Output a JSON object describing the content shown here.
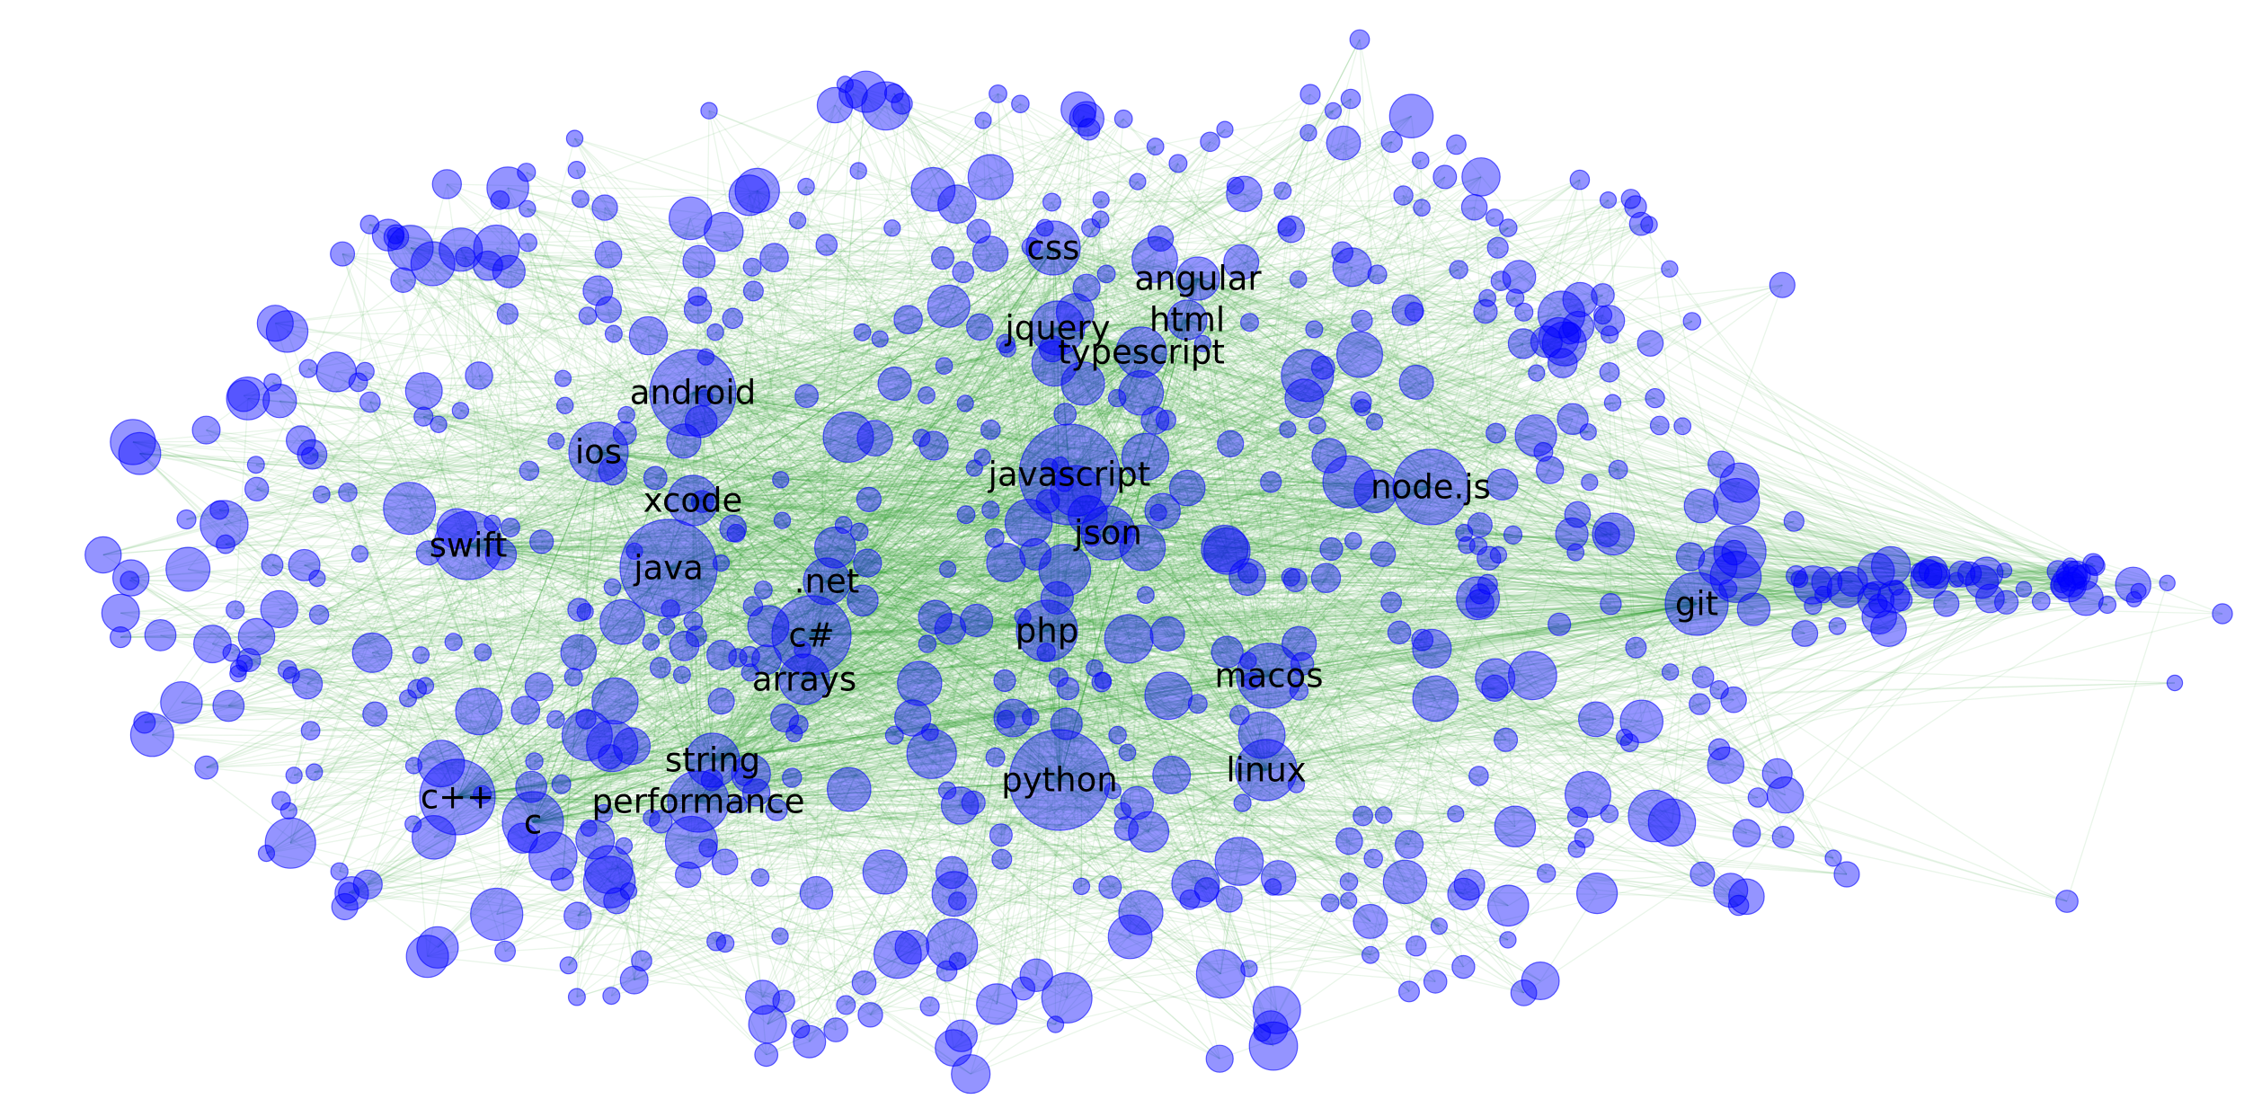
{
  "diagram": {
    "type": "network-graph",
    "node_color": "#0000ff",
    "edge_color": "#2ca02c",
    "background": "#ffffff",
    "labeled_nodes": [
      {
        "id": "css",
        "label": "css"
      },
      {
        "id": "angular",
        "label": "angular"
      },
      {
        "id": "html",
        "label": "html"
      },
      {
        "id": "jquery",
        "label": "jquery"
      },
      {
        "id": "typescript",
        "label": "typescript"
      },
      {
        "id": "android",
        "label": "android"
      },
      {
        "id": "ios",
        "label": "ios"
      },
      {
        "id": "javascript",
        "label": "javascript"
      },
      {
        "id": "nodejs",
        "label": "node.js"
      },
      {
        "id": "xcode",
        "label": "xcode"
      },
      {
        "id": "swift",
        "label": "swift"
      },
      {
        "id": "json",
        "label": "json"
      },
      {
        "id": "java",
        "label": "java"
      },
      {
        "id": "dotnet",
        "label": ".net"
      },
      {
        "id": "git",
        "label": "git"
      },
      {
        "id": "csharp",
        "label": "c#"
      },
      {
        "id": "php",
        "label": "php"
      },
      {
        "id": "macos",
        "label": "macos"
      },
      {
        "id": "arrays",
        "label": "arrays"
      },
      {
        "id": "string",
        "label": "string"
      },
      {
        "id": "linux",
        "label": "linux"
      },
      {
        "id": "python",
        "label": "python"
      },
      {
        "id": "cpp",
        "label": "c++"
      },
      {
        "id": "performance",
        "label": "performance"
      },
      {
        "id": "c",
        "label": "c"
      }
    ]
  }
}
